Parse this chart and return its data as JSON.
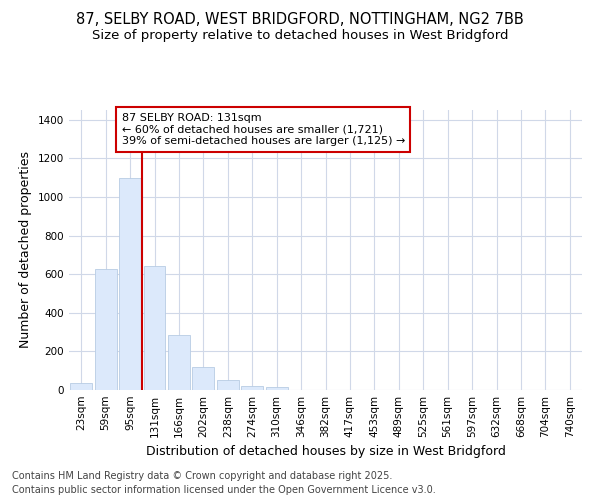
{
  "title_line1": "87, SELBY ROAD, WEST BRIDGFORD, NOTTINGHAM, NG2 7BB",
  "title_line2": "Size of property relative to detached houses in West Bridgford",
  "xlabel": "Distribution of detached houses by size in West Bridgford",
  "ylabel": "Number of detached properties",
  "categories": [
    "23sqm",
    "59sqm",
    "95sqm",
    "131sqm",
    "166sqm",
    "202sqm",
    "238sqm",
    "274sqm",
    "310sqm",
    "346sqm",
    "382sqm",
    "417sqm",
    "453sqm",
    "489sqm",
    "525sqm",
    "561sqm",
    "597sqm",
    "632sqm",
    "668sqm",
    "704sqm",
    "740sqm"
  ],
  "values": [
    35,
    625,
    1100,
    640,
    285,
    120,
    50,
    22,
    15,
    0,
    0,
    0,
    0,
    0,
    0,
    0,
    0,
    0,
    0,
    0,
    0
  ],
  "bar_color": "#dce9fb",
  "bar_edge_color": "#b8cce4",
  "highlight_index": 2,
  "highlight_line_color": "#cc0000",
  "annotation_text": "87 SELBY ROAD: 131sqm\n← 60% of detached houses are smaller (1,721)\n39% of semi-detached houses are larger (1,125) →",
  "annotation_box_facecolor": "#ffffff",
  "annotation_box_edgecolor": "#cc0000",
  "ylim": [
    0,
    1450
  ],
  "yticks": [
    0,
    200,
    400,
    600,
    800,
    1000,
    1200,
    1400
  ],
  "background_color": "#ffffff",
  "plot_bg_color": "#ffffff",
  "grid_color": "#d0d8e8",
  "footer_line1": "Contains HM Land Registry data © Crown copyright and database right 2025.",
  "footer_line2": "Contains public sector information licensed under the Open Government Licence v3.0.",
  "title_fontsize": 10.5,
  "subtitle_fontsize": 9.5,
  "axis_label_fontsize": 9,
  "tick_fontsize": 7.5,
  "annotation_fontsize": 8,
  "footer_fontsize": 7
}
